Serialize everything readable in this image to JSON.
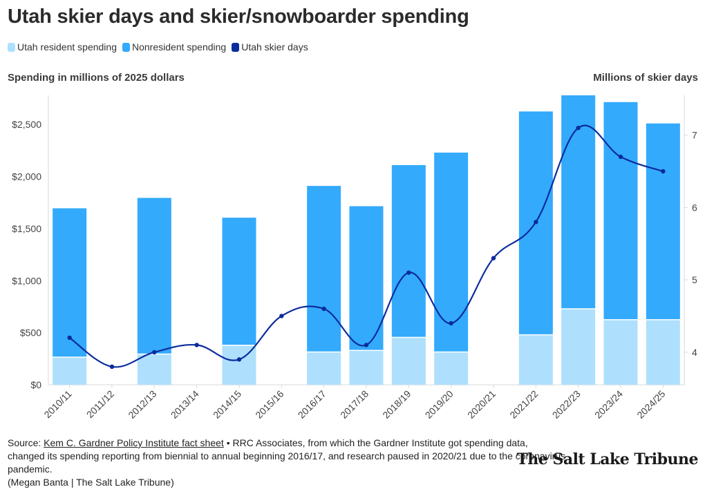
{
  "header": {
    "title": "Utah skier days and skier/snowboarder spending"
  },
  "legend": [
    {
      "label": "Utah resident spending",
      "color": "#aee0fd"
    },
    {
      "label": "Nonresident spending",
      "color": "#33aafc"
    },
    {
      "label": "Utah skier days",
      "color": "#0b2c9e"
    }
  ],
  "axes": {
    "left_title": "Spending in millions of 2025 dollars",
    "right_title": "Millions of skier days"
  },
  "chart_data": {
    "type": "bar",
    "stacked": true,
    "categories": [
      "2010/11",
      "2011/12",
      "2012/13",
      "2013/14",
      "2014/15",
      "2015/16",
      "2016/17",
      "2017/18",
      "2018/19",
      "2019/20",
      "2020/21",
      "2021/22",
      "2022/23",
      "2023/24",
      "2024/25"
    ],
    "series": [
      {
        "name": "Utah resident spending",
        "type": "bar",
        "axis": "left",
        "color": "#aee0fd",
        "values": [
          265,
          null,
          295,
          null,
          380,
          null,
          315,
          330,
          455,
          315,
          null,
          480,
          730,
          625,
          625
        ]
      },
      {
        "name": "Nonresident spending",
        "type": "bar",
        "axis": "left",
        "color": "#33aafc",
        "values": [
          1430,
          null,
          1500,
          null,
          1225,
          null,
          1595,
          1385,
          1655,
          1915,
          null,
          2145,
          2050,
          2090,
          1885
        ]
      },
      {
        "name": "Utah skier days",
        "type": "line",
        "axis": "right",
        "color": "#0b2c9e",
        "values": [
          4.2,
          3.8,
          4.0,
          4.1,
          3.9,
          4.5,
          4.6,
          4.1,
          5.1,
          4.4,
          5.3,
          5.8,
          7.1,
          6.7,
          6.5
        ]
      }
    ],
    "y_left": {
      "ticks": [
        0,
        500,
        1000,
        1500,
        2000,
        2500
      ],
      "tick_labels": [
        "$0",
        "$500",
        "$1,000",
        "$1,500",
        "$2,000",
        "$2,500"
      ],
      "range": [
        0,
        2780
      ]
    },
    "y_right": {
      "ticks": [
        4,
        5,
        6,
        7
      ],
      "tick_labels": [
        "4",
        "5",
        "6",
        "7"
      ],
      "range": [
        3.55,
        7.55
      ]
    },
    "grid": false,
    "legend_position": "top-left"
  },
  "footer": {
    "source_prefix": "Source: ",
    "source_link": "Kem C. Gardner Policy Institute fact sheet",
    "source_text": " • RRC Associates, from which the Gardner Institute got spending data, changed its spending reporting from biennial to annual beginning 2016/17, and research paused in 2020/21 due to the coronavirus pandemic.",
    "credit": "(Megan Banta | The Salt Lake Tribune)",
    "logo": "The Salt Lake Tribune"
  }
}
